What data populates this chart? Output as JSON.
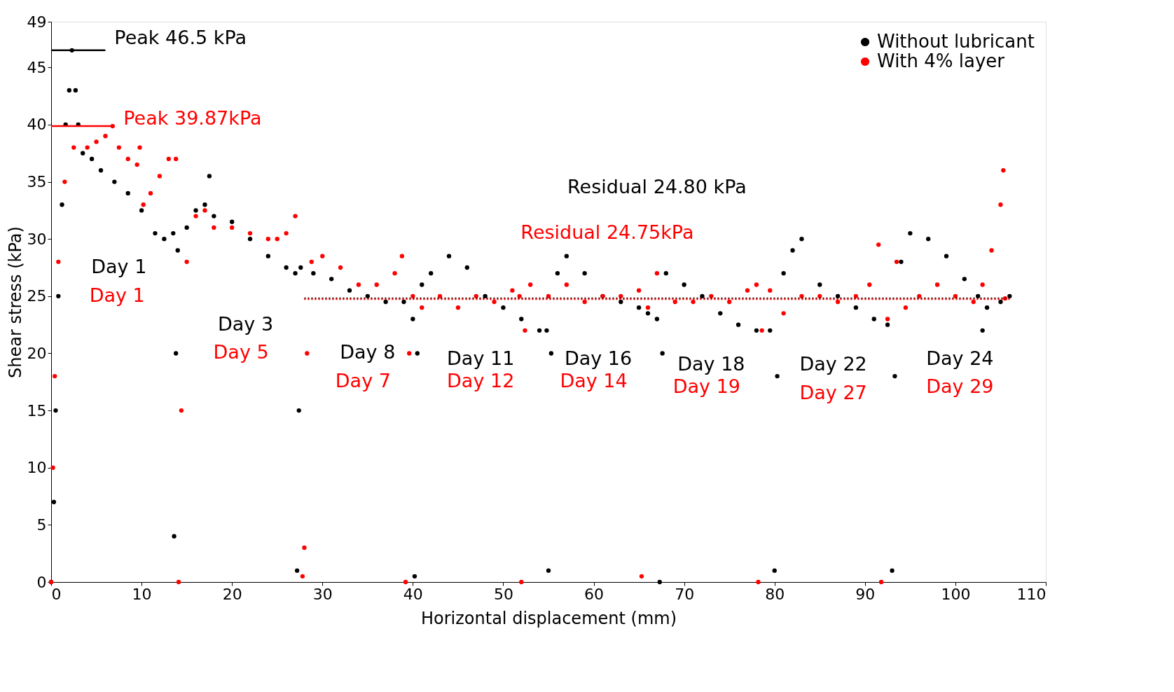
{
  "chart_data": {
    "type": "scatter",
    "xlabel": "Horizontal displacement (mm)",
    "ylabel": "Shear stress (kPa)",
    "xlim": [
      0,
      110
    ],
    "xticks": [
      0,
      10,
      20,
      30,
      40,
      50,
      60,
      70,
      80,
      90,
      100,
      110
    ],
    "ylim": [
      0,
      49
    ],
    "yticks": [
      0,
      5,
      10,
      15,
      20,
      25,
      30,
      35,
      40,
      45,
      49
    ],
    "grid": false,
    "legend": "top right",
    "marker": "circle",
    "series": [
      {
        "name": "Without lubricant",
        "color": "#000000",
        "x": [
          0,
          0.3,
          0.5,
          0.8,
          1.2,
          1.6,
          2,
          2.3,
          2.7,
          3,
          3.5,
          4.5,
          5.5,
          7,
          8.5,
          10,
          11.5,
          12.5,
          13.5,
          13.6,
          13.8,
          14,
          15,
          16,
          17,
          17.5,
          18,
          20,
          22,
          24,
          26,
          27,
          27.2,
          27.4,
          27.6,
          29,
          31,
          33,
          35,
          37,
          39,
          40,
          40.2,
          40.5,
          41,
          42,
          44,
          46,
          48,
          50,
          52,
          54,
          54.8,
          55,
          55.3,
          56,
          57,
          59,
          61,
          63,
          65,
          66,
          67,
          67.3,
          67.6,
          68,
          70,
          72,
          74,
          76,
          78,
          79.5,
          80,
          80.3,
          81,
          82,
          83,
          85,
          87,
          89,
          91,
          92.5,
          93,
          93.3,
          94,
          95,
          97,
          99,
          101,
          102.5,
          103,
          103.5,
          105,
          106
        ],
        "values": [
          0,
          7,
          15,
          25,
          33,
          40,
          43,
          46.5,
          43,
          40,
          37.5,
          37,
          36,
          35,
          34,
          32.5,
          30.5,
          30,
          30.5,
          4,
          20,
          29,
          31,
          32.5,
          33,
          35.5,
          32,
          31.5,
          30,
          28.5,
          27.5,
          27,
          1,
          15,
          27.5,
          27,
          26.5,
          25.5,
          25,
          24.5,
          24.5,
          23,
          0.5,
          20,
          26,
          27,
          28.5,
          27.5,
          25,
          24,
          23,
          22,
          22,
          1,
          20,
          27,
          28.5,
          27,
          25,
          24.5,
          24,
          23.5,
          23,
          0,
          20,
          27,
          26,
          25,
          23.5,
          22.5,
          22,
          22,
          1,
          18,
          27,
          29,
          30,
          26,
          25,
          24,
          23,
          22.5,
          1,
          18,
          28,
          30.5,
          30,
          28.5,
          26.5,
          25,
          22,
          24,
          24.5,
          25
        ]
      },
      {
        "name": "With 4% layer",
        "color": "#ff0000",
        "x": [
          0,
          0.2,
          0.4,
          0.8,
          1.5,
          2.5,
          4,
          5,
          6,
          6.8,
          7.5,
          8.5,
          9.5,
          9.8,
          10.2,
          11,
          12,
          13,
          13.8,
          14.1,
          14.4,
          15,
          16,
          17,
          18,
          20,
          22,
          24,
          25,
          26,
          27,
          27.8,
          28,
          28.3,
          28.8,
          30,
          32,
          34,
          36,
          38,
          38.8,
          39.2,
          39.6,
          40,
          41,
          43,
          45,
          47,
          49,
          51,
          51.8,
          52,
          52.4,
          53,
          55,
          57,
          59,
          61,
          63,
          65,
          65.3,
          66,
          67,
          69,
          71,
          73,
          75,
          77,
          78,
          78.2,
          78.6,
          79.5,
          81,
          83,
          85,
          87,
          89,
          90.5,
          91.5,
          91.8,
          92.5,
          93.5,
          94.5,
          96,
          98,
          100,
          102,
          103,
          104,
          105,
          105.3,
          105.5
        ],
        "values": [
          0,
          10,
          18,
          28,
          35,
          38,
          38,
          38.5,
          39,
          39.87,
          38,
          37,
          36.5,
          38,
          33,
          34,
          35.5,
          37,
          37,
          0,
          15,
          28,
          32,
          32.5,
          31,
          31,
          30.5,
          30,
          30,
          30.5,
          32,
          0.5,
          3,
          20,
          28,
          28.5,
          27.5,
          26,
          26,
          27,
          28.5,
          0,
          20,
          25,
          24,
          25,
          24,
          25,
          24.5,
          25.5,
          25,
          0,
          22,
          26,
          25,
          26,
          24.5,
          25,
          25,
          25.5,
          0.5,
          24,
          27,
          24.5,
          24.5,
          25,
          24.5,
          25.5,
          26,
          0,
          22,
          25.5,
          23.5,
          25,
          25,
          24.5,
          25,
          26,
          29.5,
          0,
          23,
          28,
          24,
          25,
          26,
          25,
          24.5,
          26,
          29,
          33,
          36,
          24.8
        ]
      },
      {
        "type": "line",
        "color": "#000000",
        "line_style": "solid",
        "marker": "none",
        "x": [
          0,
          6
        ],
        "values": [
          46.5,
          46.5
        ]
      },
      {
        "type": "line",
        "color": "#ff0000",
        "line_style": "solid",
        "marker": "none",
        "x": [
          0,
          7
        ],
        "values": [
          39.87,
          39.87
        ]
      },
      {
        "type": "line",
        "color": "#000000",
        "line_style": "dotted",
        "marker": "none",
        "x": [
          28,
          106
        ],
        "values": [
          24.8,
          24.8
        ]
      },
      {
        "type": "line",
        "color": "#ff0000",
        "line_style": "dotted",
        "marker": "none",
        "x": [
          28,
          106
        ],
        "values": [
          24.75,
          24.75
        ]
      }
    ],
    "annotations": [
      "Peak 46.5 kPa",
      "Peak 39.87kPa",
      "Residual 24.80 kPa",
      "Residual 24.75kPa",
      "Day 1",
      "Day 1",
      "Day 3",
      "Day 5",
      "Day 8",
      "Day 7",
      "Day 11",
      "Day 12",
      "Day 16",
      "Day 14",
      "Day 18",
      "Day 19",
      "Day 22",
      "Day 27",
      "Day 24",
      "Day 29"
    ]
  }
}
